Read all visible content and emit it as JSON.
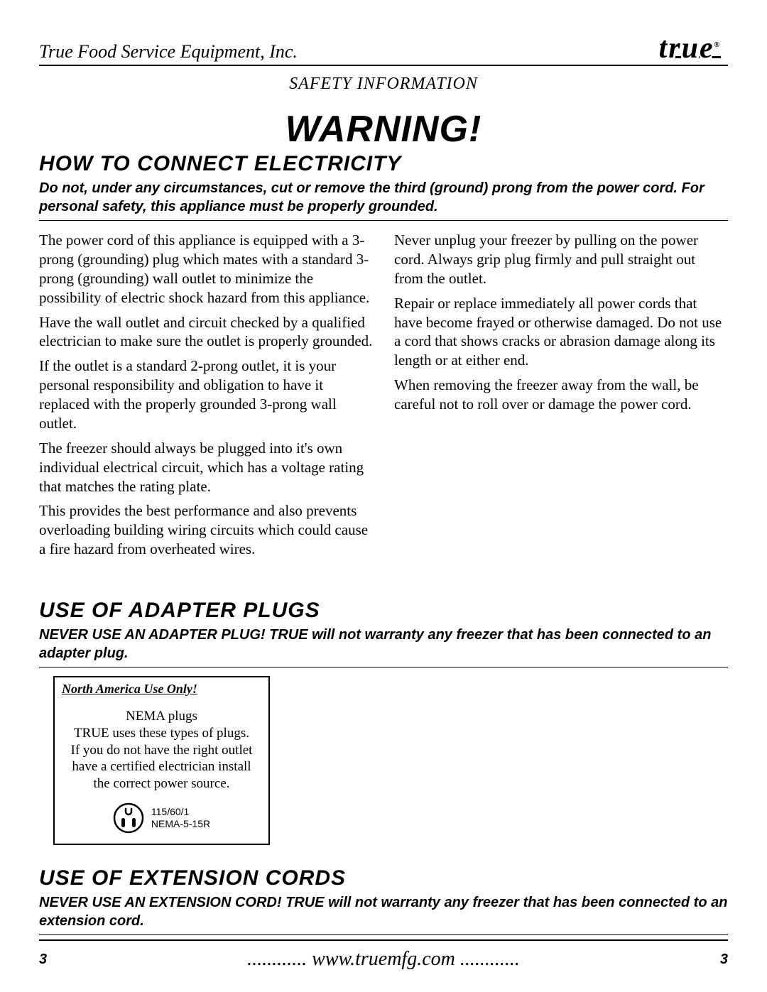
{
  "header": {
    "company": "True Food Service Equipment, Inc.",
    "logo_text": "true",
    "section": "SAFETY INFORMATION"
  },
  "warning": "WARNING!",
  "sections": {
    "connect": {
      "title": "HOW TO CONNECT ELECTRICITY",
      "lead": "Do not, under any circumstances, cut or remove the third (ground) prong from the power cord. For personal safety, this appliance must be properly grounded.",
      "left": [
        "The power cord of this appliance is equipped with a 3-prong (grounding) plug which mates with a standard 3-prong (grounding) wall outlet to minimize the possibility of electric shock hazard from this appliance.",
        "Have the wall outlet and circuit checked by a qualified electrician to make sure the outlet is properly grounded.",
        "If the outlet is a standard 2-prong outlet, it is your personal responsibility and obligation to have it replaced with the properly grounded 3-prong wall outlet.",
        "The freezer should always be plugged into it's own individual electrical circuit, which has a voltage rating that matches the rating plate.",
        "This provides the best performance and also prevents overloading building wiring circuits which could cause a fire hazard from overheated wires."
      ],
      "right": [
        "Never unplug your freezer by pulling on the power cord. Always grip plug firmly and pull straight out from the outlet.",
        "Repair or replace immediately all power cords that have become frayed or otherwise damaged. Do not use a cord that shows cracks or abrasion damage along its length or at either end.",
        "When removing the freezer away from the wall, be careful not to roll over or damage the power cord."
      ]
    },
    "adapter": {
      "title": "USE OF ADAPTER PLUGS",
      "lead": "NEVER USE AN ADAPTER PLUG!  TRUE will not warranty any freezer that has been connected to an adapter plug.",
      "box_title": "North America Use Only!",
      "box_body": "NEMA plugs\nTRUE uses these types of plugs.\nIf you do not have the right outlet\nhave a certified electrician install\nthe correct power source.",
      "plug_spec1": "115/60/1",
      "plug_spec2": "NEMA-5-15R"
    },
    "extension": {
      "title": "USE OF EXTENSION CORDS",
      "lead": "NEVER USE AN EXTENSION CORD!  TRUE will not warranty any freezer that has been connected to an extension cord."
    }
  },
  "footer": {
    "page": "3",
    "url": "............ www.truemfg.com ............"
  }
}
